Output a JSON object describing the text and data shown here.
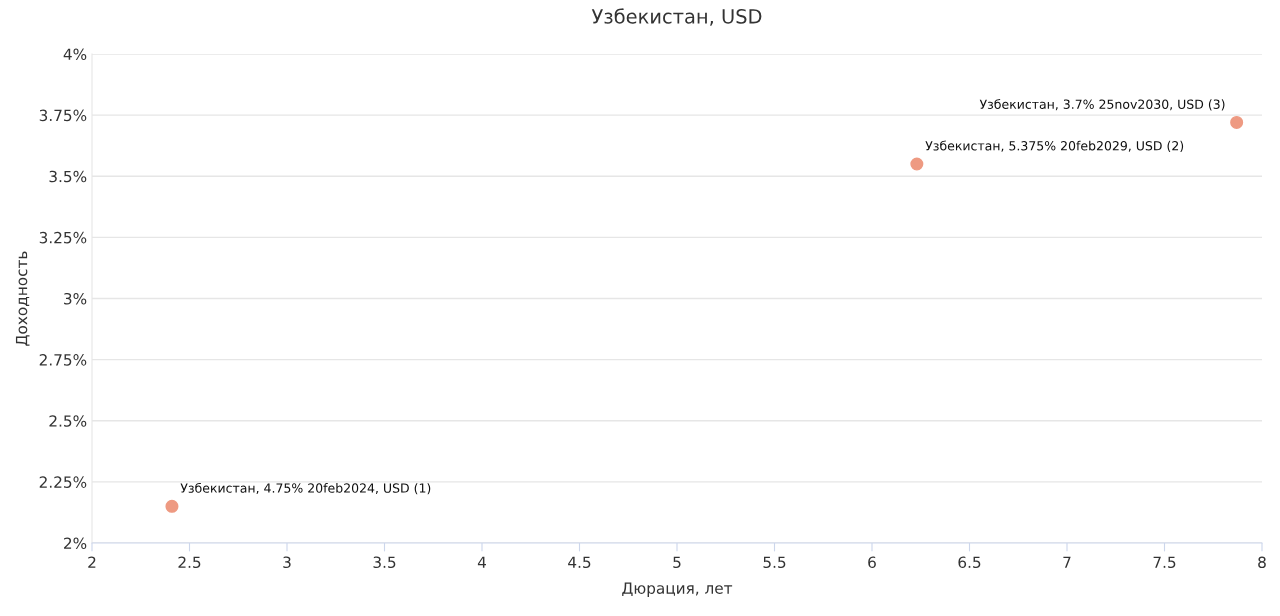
{
  "chart_data": {
    "type": "scatter",
    "title": "Узбекистан, USD",
    "xlabel": "Дюрация, лет",
    "ylabel": "Доходность",
    "x": [
      2.41,
      6.23,
      7.87
    ],
    "series": [
      {
        "color": "#ee9a82",
        "values": [
          2.15,
          3.55,
          3.72
        ]
      }
    ],
    "annotations": [
      {
        "text": "Узбекистан, 4.75% 20feb2024, USD (1)",
        "x": 2.41,
        "y": 2.15
      },
      {
        "text": "Узбекистан, 5.375% 20feb2029, USD (2)",
        "x": 6.23,
        "y": 3.55
      },
      {
        "text": "Узбекистан, 3.7% 25nov2030, USD (3)",
        "x": 7.87,
        "y": 3.72
      }
    ],
    "xlim": [
      2,
      8
    ],
    "xticks": [
      2,
      2.5,
      3,
      3.5,
      4,
      4.5,
      5,
      5.5,
      6,
      6.5,
      7,
      7.5,
      8
    ],
    "ylim": [
      2,
      4
    ],
    "yticks": [
      {
        "value": 2,
        "label": "2%"
      },
      {
        "value": 2.25,
        "label": "2.25%"
      },
      {
        "value": 2.5,
        "label": "2.5%"
      },
      {
        "value": 2.75,
        "label": "2.75%"
      },
      {
        "value": 3,
        "label": "3%"
      },
      {
        "value": 3.25,
        "label": "3.25%"
      },
      {
        "value": 3.5,
        "label": "3.5%"
      },
      {
        "value": 3.75,
        "label": "3.75%"
      },
      {
        "value": 4,
        "label": "4%"
      }
    ],
    "grid": "y",
    "marker": "circle"
  }
}
